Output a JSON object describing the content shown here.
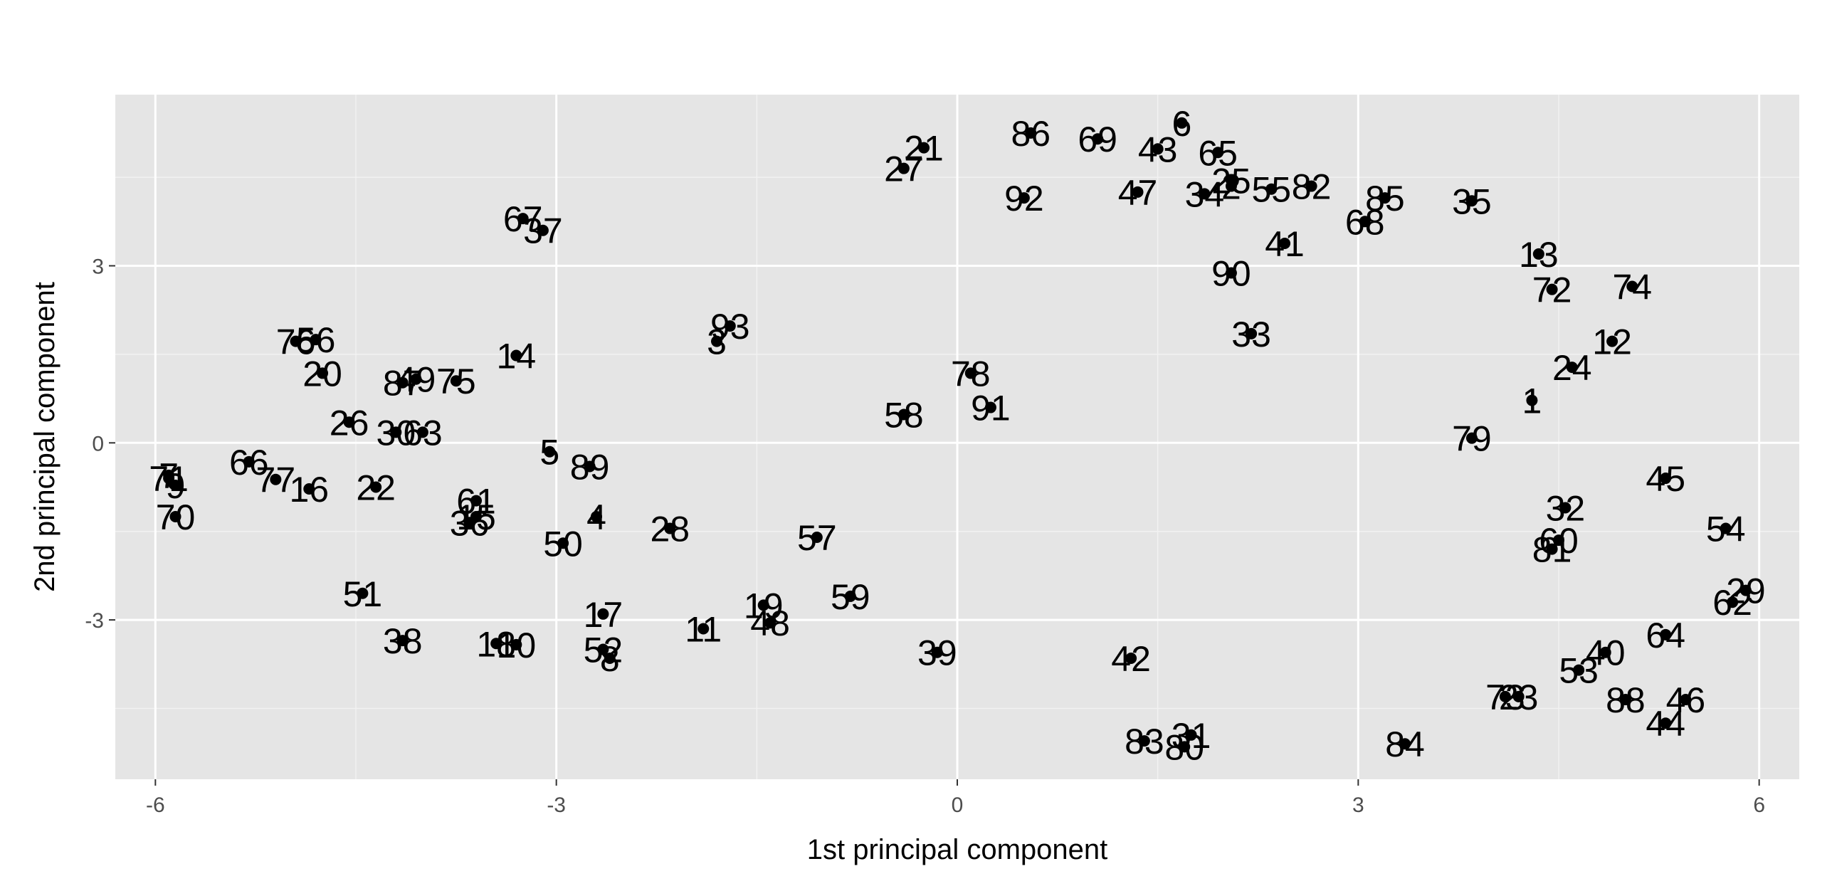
{
  "chart_data": {
    "type": "scatter",
    "xlabel": "1st principal component",
    "ylabel": "2nd principal component",
    "xlim": [
      -6.3,
      6.3
    ],
    "ylim": [
      -5.7,
      5.9
    ],
    "x_ticks": [
      {
        "value": -6,
        "label": "-6"
      },
      {
        "value": -3,
        "label": "-3"
      },
      {
        "value": 0,
        "label": "0"
      },
      {
        "value": 3,
        "label": "3"
      },
      {
        "value": 6,
        "label": "6"
      }
    ],
    "y_ticks": [
      {
        "value": -3,
        "label": "-3"
      },
      {
        "value": 0,
        "label": "0"
      },
      {
        "value": 3,
        "label": "3"
      }
    ],
    "grid": true,
    "background": "#e5e5e5",
    "grid_color": "#ffffff",
    "point_color": "#000000",
    "points": [
      {
        "label": "1",
        "x": 4.3,
        "y": 0.72
      },
      {
        "label": "2",
        "x": 2.05,
        "y": 4.35
      },
      {
        "label": "3",
        "x": -1.8,
        "y": 1.72
      },
      {
        "label": "4",
        "x": -2.7,
        "y": -1.25
      },
      {
        "label": "5",
        "x": -3.05,
        "y": -0.15
      },
      {
        "label": "6",
        "x": 1.68,
        "y": 5.42
      },
      {
        "label": "7",
        "x": -5.9,
        "y": -0.55
      },
      {
        "label": "8",
        "x": -2.6,
        "y": -3.65
      },
      {
        "label": "9",
        "x": -5.85,
        "y": -0.72
      },
      {
        "label": "10",
        "x": -3.3,
        "y": -3.42
      },
      {
        "label": "11",
        "x": -1.9,
        "y": -3.15
      },
      {
        "label": "12",
        "x": 4.9,
        "y": 1.72
      },
      {
        "label": "13",
        "x": 4.35,
        "y": 3.2
      },
      {
        "label": "14",
        "x": -3.3,
        "y": 1.48
      },
      {
        "label": "15",
        "x": -3.6,
        "y": -1.25
      },
      {
        "label": "16",
        "x": -4.85,
        "y": -0.78
      },
      {
        "label": "17",
        "x": -2.65,
        "y": -2.9
      },
      {
        "label": "18",
        "x": -3.45,
        "y": -3.4
      },
      {
        "label": "19",
        "x": -1.45,
        "y": -2.75
      },
      {
        "label": "20",
        "x": -4.75,
        "y": 1.18
      },
      {
        "label": "21",
        "x": -0.25,
        "y": 5.0
      },
      {
        "label": "22",
        "x": -4.35,
        "y": -0.75
      },
      {
        "label": "23",
        "x": 4.2,
        "y": -4.3
      },
      {
        "label": "24",
        "x": 4.6,
        "y": 1.28
      },
      {
        "label": "25",
        "x": 2.05,
        "y": 4.45
      },
      {
        "label": "26",
        "x": -4.55,
        "y": 0.35
      },
      {
        "label": "27",
        "x": -0.4,
        "y": 4.65
      },
      {
        "label": "28",
        "x": -2.15,
        "y": -1.45
      },
      {
        "label": "29",
        "x": 5.9,
        "y": -2.5
      },
      {
        "label": "30",
        "x": -4.2,
        "y": 0.18
      },
      {
        "label": "31",
        "x": 1.75,
        "y": -4.95
      },
      {
        "label": "32",
        "x": 4.55,
        "y": -1.1
      },
      {
        "label": "33",
        "x": 2.2,
        "y": 1.85
      },
      {
        "label": "34",
        "x": 1.85,
        "y": 4.22
      },
      {
        "label": "35",
        "x": 3.85,
        "y": 4.1
      },
      {
        "label": "36",
        "x": -3.65,
        "y": -1.35
      },
      {
        "label": "37",
        "x": -3.1,
        "y": 3.6
      },
      {
        "label": "38",
        "x": -4.15,
        "y": -3.35
      },
      {
        "label": "39",
        "x": -0.15,
        "y": -3.55
      },
      {
        "label": "40",
        "x": 4.85,
        "y": -3.55
      },
      {
        "label": "41",
        "x": 2.45,
        "y": 3.38
      },
      {
        "label": "42",
        "x": 1.3,
        "y": -3.65
      },
      {
        "label": "43",
        "x": 1.5,
        "y": 4.98
      },
      {
        "label": "44",
        "x": 5.3,
        "y": -4.75
      },
      {
        "label": "45",
        "x": 5.3,
        "y": -0.6
      },
      {
        "label": "46",
        "x": 5.45,
        "y": -4.35
      },
      {
        "label": "47",
        "x": 1.35,
        "y": 4.25
      },
      {
        "label": "48",
        "x": -1.4,
        "y": -3.05
      },
      {
        "label": "49",
        "x": -4.05,
        "y": 1.08
      },
      {
        "label": "50",
        "x": -2.95,
        "y": -1.7
      },
      {
        "label": "51",
        "x": -4.45,
        "y": -2.55
      },
      {
        "label": "52",
        "x": -2.65,
        "y": -3.5
      },
      {
        "label": "53",
        "x": 4.65,
        "y": -3.85
      },
      {
        "label": "54",
        "x": 5.75,
        "y": -1.45
      },
      {
        "label": "55",
        "x": 2.35,
        "y": 4.3
      },
      {
        "label": "56",
        "x": -4.8,
        "y": 1.75
      },
      {
        "label": "57",
        "x": -1.05,
        "y": -1.6
      },
      {
        "label": "58",
        "x": -0.4,
        "y": 0.48
      },
      {
        "label": "59",
        "x": -0.8,
        "y": -2.6
      },
      {
        "label": "60",
        "x": 4.5,
        "y": -1.65
      },
      {
        "label": "61",
        "x": -3.6,
        "y": -0.98
      },
      {
        "label": "62",
        "x": 5.8,
        "y": -2.7
      },
      {
        "label": "63",
        "x": -4.0,
        "y": 0.18
      },
      {
        "label": "64",
        "x": 5.3,
        "y": -3.25
      },
      {
        "label": "65",
        "x": 1.95,
        "y": 4.92
      },
      {
        "label": "66",
        "x": -5.3,
        "y": -0.32
      },
      {
        "label": "67",
        "x": -3.25,
        "y": 3.8
      },
      {
        "label": "68",
        "x": 3.05,
        "y": 3.75
      },
      {
        "label": "69",
        "x": 1.05,
        "y": 5.15
      },
      {
        "label": "70",
        "x": -5.85,
        "y": -1.25
      },
      {
        "label": "71",
        "x": -5.9,
        "y": -0.6
      },
      {
        "label": "72",
        "x": 4.45,
        "y": 2.6
      },
      {
        "label": "73",
        "x": 4.1,
        "y": -4.3
      },
      {
        "label": "74",
        "x": 5.05,
        "y": 2.65
      },
      {
        "label": "75",
        "x": -3.75,
        "y": 1.05
      },
      {
        "label": "76",
        "x": -4.95,
        "y": 1.72
      },
      {
        "label": "77",
        "x": -5.1,
        "y": -0.62
      },
      {
        "label": "78",
        "x": 0.1,
        "y": 1.18
      },
      {
        "label": "79",
        "x": 3.85,
        "y": 0.08
      },
      {
        "label": "80",
        "x": 1.7,
        "y": -5.15
      },
      {
        "label": "81",
        "x": 4.45,
        "y": -1.8
      },
      {
        "label": "82",
        "x": 2.65,
        "y": 4.35
      },
      {
        "label": "83",
        "x": 1.4,
        "y": -5.05
      },
      {
        "label": "84",
        "x": 3.35,
        "y": -5.1
      },
      {
        "label": "85",
        "x": 3.2,
        "y": 4.15
      },
      {
        "label": "86",
        "x": 0.55,
        "y": 5.25
      },
      {
        "label": "87",
        "x": -4.15,
        "y": 1.02
      },
      {
        "label": "88",
        "x": 5.0,
        "y": -4.35
      },
      {
        "label": "89",
        "x": -2.75,
        "y": -0.4
      },
      {
        "label": "90",
        "x": 2.05,
        "y": 2.88
      },
      {
        "label": "91",
        "x": 0.25,
        "y": 0.6
      },
      {
        "label": "92",
        "x": 0.5,
        "y": 4.15
      },
      {
        "label": "93",
        "x": -1.7,
        "y": 1.98
      }
    ]
  }
}
